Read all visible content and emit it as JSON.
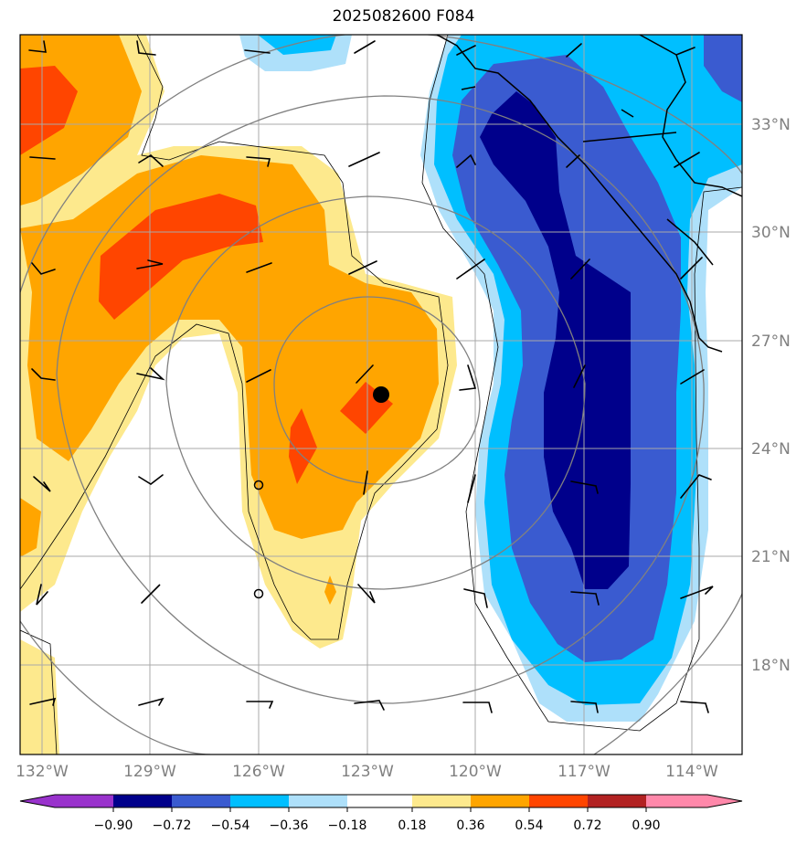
{
  "title": "2025082600 F084",
  "lat_labels": [
    "33°N",
    "30°N",
    "27°N",
    "24°N",
    "21°N",
    "18°N"
  ],
  "lon_labels": [
    "132°W",
    "129°W",
    "126°W",
    "123°W",
    "120°W",
    "117°W",
    "114°W"
  ],
  "colorbar": {
    "ticks": [
      "−0.90",
      "−0.72",
      "−0.54",
      "−0.36",
      "−0.18",
      "0.18",
      "0.36",
      "0.54",
      "0.72",
      "0.90"
    ],
    "colors": [
      "#9932cc",
      "#00008b",
      "#3a5bd0",
      "#00bfff",
      "#aee0fa",
      "#ffffff",
      "#fde98d",
      "#ffa500",
      "#ff4500",
      "#b22222",
      "#ff88aa"
    ]
  },
  "colors": {
    "grid": "#a9a9a9",
    "rings": "#808080",
    "center_marker": "#000000"
  },
  "storm_center_marker": "filled-circle"
}
